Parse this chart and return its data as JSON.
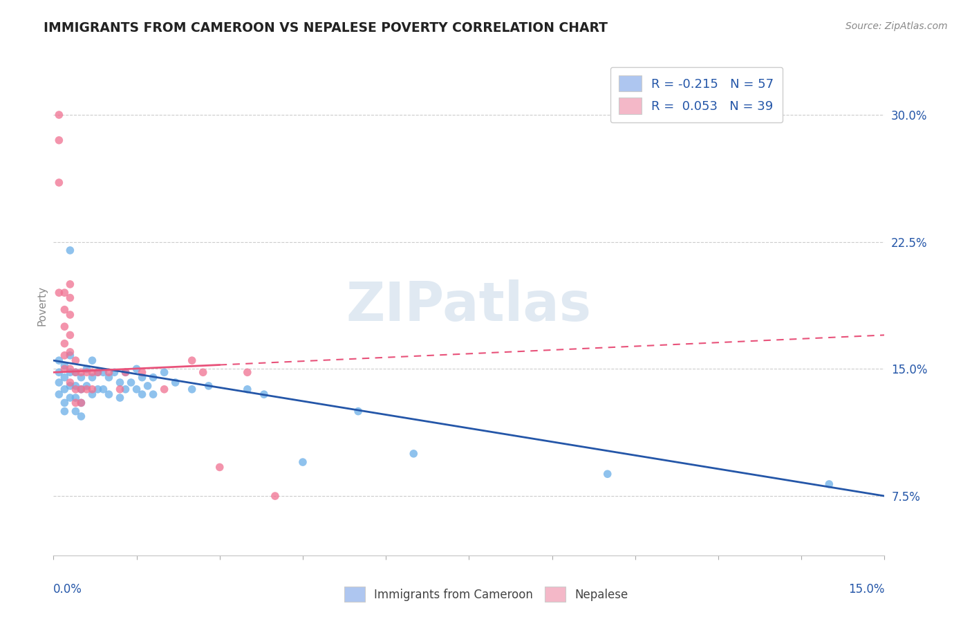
{
  "title": "IMMIGRANTS FROM CAMEROON VS NEPALESE POVERTY CORRELATION CHART",
  "source": "Source: ZipAtlas.com",
  "ylabel": "Poverty",
  "y_ticks": [
    0.075,
    0.15,
    0.225,
    0.3
  ],
  "y_tick_labels": [
    "7.5%",
    "15.0%",
    "22.5%",
    "30.0%"
  ],
  "x_range": [
    0.0,
    0.15
  ],
  "y_range": [
    0.04,
    0.335
  ],
  "legend_entries": [
    {
      "color": "#aec6f0",
      "label": "R = -0.215   N = 57"
    },
    {
      "color": "#f4b8c8",
      "label": "R =  0.053   N = 39"
    }
  ],
  "watermark": "ZIPatlas",
  "blue_color": "#6aaee8",
  "pink_color": "#f07090",
  "blue_line_color": "#2456a8",
  "pink_line_color": "#e8527a",
  "blue_scatter": [
    [
      0.001,
      0.155
    ],
    [
      0.001,
      0.148
    ],
    [
      0.001,
      0.142
    ],
    [
      0.001,
      0.135
    ],
    [
      0.002,
      0.152
    ],
    [
      0.002,
      0.145
    ],
    [
      0.002,
      0.138
    ],
    [
      0.002,
      0.13
    ],
    [
      0.002,
      0.125
    ],
    [
      0.003,
      0.22
    ],
    [
      0.003,
      0.158
    ],
    [
      0.003,
      0.148
    ],
    [
      0.003,
      0.14
    ],
    [
      0.003,
      0.133
    ],
    [
      0.004,
      0.148
    ],
    [
      0.004,
      0.14
    ],
    [
      0.004,
      0.133
    ],
    [
      0.004,
      0.125
    ],
    [
      0.005,
      0.145
    ],
    [
      0.005,
      0.138
    ],
    [
      0.005,
      0.13
    ],
    [
      0.005,
      0.122
    ],
    [
      0.006,
      0.15
    ],
    [
      0.006,
      0.14
    ],
    [
      0.007,
      0.155
    ],
    [
      0.007,
      0.145
    ],
    [
      0.007,
      0.135
    ],
    [
      0.008,
      0.148
    ],
    [
      0.008,
      0.138
    ],
    [
      0.009,
      0.148
    ],
    [
      0.009,
      0.138
    ],
    [
      0.01,
      0.145
    ],
    [
      0.01,
      0.135
    ],
    [
      0.011,
      0.148
    ],
    [
      0.012,
      0.142
    ],
    [
      0.012,
      0.133
    ],
    [
      0.013,
      0.148
    ],
    [
      0.013,
      0.138
    ],
    [
      0.014,
      0.142
    ],
    [
      0.015,
      0.15
    ],
    [
      0.015,
      0.138
    ],
    [
      0.016,
      0.145
    ],
    [
      0.016,
      0.135
    ],
    [
      0.017,
      0.14
    ],
    [
      0.018,
      0.145
    ],
    [
      0.018,
      0.135
    ],
    [
      0.02,
      0.148
    ],
    [
      0.022,
      0.142
    ],
    [
      0.025,
      0.138
    ],
    [
      0.028,
      0.14
    ],
    [
      0.035,
      0.138
    ],
    [
      0.038,
      0.135
    ],
    [
      0.045,
      0.095
    ],
    [
      0.055,
      0.125
    ],
    [
      0.065,
      0.1
    ],
    [
      0.1,
      0.088
    ],
    [
      0.14,
      0.082
    ]
  ],
  "pink_scatter": [
    [
      0.001,
      0.3
    ],
    [
      0.001,
      0.285
    ],
    [
      0.001,
      0.26
    ],
    [
      0.001,
      0.195
    ],
    [
      0.002,
      0.195
    ],
    [
      0.002,
      0.185
    ],
    [
      0.002,
      0.175
    ],
    [
      0.002,
      0.165
    ],
    [
      0.002,
      0.158
    ],
    [
      0.002,
      0.15
    ],
    [
      0.003,
      0.2
    ],
    [
      0.003,
      0.192
    ],
    [
      0.003,
      0.182
    ],
    [
      0.003,
      0.17
    ],
    [
      0.003,
      0.16
    ],
    [
      0.003,
      0.15
    ],
    [
      0.003,
      0.142
    ],
    [
      0.004,
      0.155
    ],
    [
      0.004,
      0.148
    ],
    [
      0.004,
      0.138
    ],
    [
      0.004,
      0.13
    ],
    [
      0.005,
      0.148
    ],
    [
      0.005,
      0.138
    ],
    [
      0.005,
      0.13
    ],
    [
      0.006,
      0.148
    ],
    [
      0.006,
      0.138
    ],
    [
      0.007,
      0.148
    ],
    [
      0.007,
      0.138
    ],
    [
      0.008,
      0.148
    ],
    [
      0.01,
      0.148
    ],
    [
      0.012,
      0.138
    ],
    [
      0.013,
      0.148
    ],
    [
      0.016,
      0.148
    ],
    [
      0.02,
      0.138
    ],
    [
      0.025,
      0.155
    ],
    [
      0.027,
      0.148
    ],
    [
      0.03,
      0.092
    ],
    [
      0.035,
      0.148
    ],
    [
      0.04,
      0.075
    ]
  ],
  "blue_line": [
    0.0,
    0.15,
    0.155,
    0.075
  ],
  "pink_line": [
    0.0,
    0.15,
    0.148,
    0.17
  ],
  "pink_line_solid_end": 0.03,
  "pink_line_dashed_start": 0.03
}
